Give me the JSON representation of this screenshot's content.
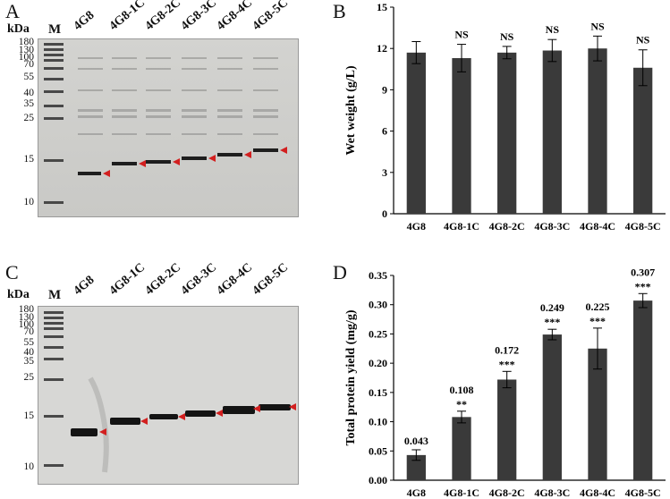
{
  "panels": {
    "A": {
      "letter": "A",
      "unit": "kDa",
      "marker_label": "M",
      "lanes": [
        "4G8",
        "4G8-1C",
        "4G8-2C",
        "4G8-3C",
        "4G8-4C",
        "4G8-5C"
      ],
      "mw": [
        "180",
        "130",
        "100",
        "70",
        "55",
        "40",
        "35",
        "25",
        "15",
        "10"
      ]
    },
    "B": {
      "letter": "B"
    },
    "C": {
      "letter": "C",
      "unit": "kDa",
      "marker_label": "M",
      "lanes": [
        "4G8",
        "4G8-1C",
        "4G8-2C",
        "4G8-3C",
        "4G8-4C",
        "4G8-5C"
      ],
      "mw": [
        "180",
        "130",
        "100",
        "70",
        "55",
        "40",
        "35",
        "25",
        "15",
        "10"
      ]
    },
    "D": {
      "letter": "D"
    }
  },
  "chart_data": [
    {
      "type": "bar",
      "panel": "B",
      "categories": [
        "4G8",
        "4G8-1C",
        "4G8-2C",
        "4G8-3C",
        "4G8-4C",
        "4G8-5C"
      ],
      "values": [
        11.7,
        11.3,
        11.7,
        11.85,
        12.0,
        10.6
      ],
      "errors": [
        0.8,
        1.0,
        0.45,
        0.8,
        0.9,
        1.3
      ],
      "annotations": [
        "",
        "NS",
        "NS",
        "NS",
        "NS",
        "NS"
      ],
      "ylabel": "Wet weight (g/L)",
      "ylim": [
        0,
        15
      ],
      "yticks": [
        "0",
        "3",
        "6",
        "9",
        "12",
        "15"
      ],
      "bar_color": "#3a3a3a"
    },
    {
      "type": "bar",
      "panel": "D",
      "categories": [
        "4G8",
        "4G8-1C",
        "4G8-2C",
        "4G8-3C",
        "4G8-4C",
        "4G8-5C"
      ],
      "values": [
        0.043,
        0.108,
        0.172,
        0.249,
        0.225,
        0.307
      ],
      "errors": [
        0.009,
        0.01,
        0.014,
        0.009,
        0.035,
        0.012
      ],
      "value_labels": [
        "0.043",
        "0.108",
        "0.172",
        "0.249",
        "0.225",
        "0.307"
      ],
      "significance": [
        "",
        "**",
        "***",
        "***",
        "***",
        "***"
      ],
      "ylabel": "Total protein yield (mg/g)",
      "ylim": [
        0,
        0.35
      ],
      "yticks": [
        "0.00",
        "0.05",
        "0.10",
        "0.15",
        "0.20",
        "0.25",
        "0.30",
        "0.35"
      ],
      "bar_color": "#3a3a3a"
    }
  ]
}
